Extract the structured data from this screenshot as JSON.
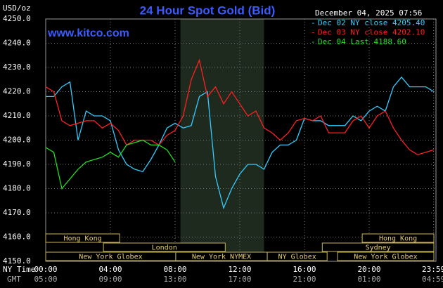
{
  "chart_data": {
    "type": "line",
    "title": "24 Hour Spot Gold (Bid)",
    "y_label": "USD/oz",
    "watermark": "www.kitco.com",
    "timestamp": "December 04, 2025 07:56",
    "x_label": "NY Time",
    "x2_label": "GMT",
    "x": [
      0,
      0.5,
      1,
      1.5,
      2,
      2.5,
      3,
      3.5,
      4,
      4.5,
      5,
      5.5,
      6,
      6.5,
      7,
      7.5,
      8,
      8.5,
      9,
      9.5,
      10,
      10.5,
      11,
      11.5,
      12,
      12.5,
      13,
      13.5,
      14,
      14.5,
      15,
      15.5,
      16,
      16.5,
      17,
      17.5,
      18,
      18.5,
      19,
      19.5,
      20,
      20.5,
      21,
      21.5,
      22,
      22.5,
      23,
      23.5,
      24
    ],
    "series": [
      {
        "name": "Dec 02 NY close 4205.40",
        "color": "#33ccff",
        "values": [
          4218,
          4218,
          4222,
          4224,
          4200,
          4212,
          4210,
          4210,
          4208,
          4196,
          4190,
          4188,
          4187,
          4192,
          4198,
          4205,
          4207,
          4205,
          4206,
          4218,
          4220,
          4185,
          4172,
          4180,
          4186,
          4190,
          4190,
          4188,
          4195,
          4198,
          4198,
          4200,
          4209,
          4208,
          4208,
          4206,
          4206,
          4206,
          4210,
          4208,
          4212,
          4214,
          4212,
          4222,
          4226,
          4222,
          4222,
          4222,
          4220
        ]
      },
      {
        "name": "Dec 03 NY close 4202.10",
        "color": "#ff2020",
        "values": [
          4222,
          4220,
          4208,
          4206,
          4207,
          4208,
          4208,
          4205,
          4207,
          4204,
          4198,
          4200,
          4200,
          4200,
          4198,
          4202,
          4204,
          4210,
          4225,
          4233,
          4218,
          4222,
          4215,
          4220,
          4215,
          4210,
          4212,
          4205,
          4203,
          4200,
          4203,
          4208,
          4209,
          4208,
          4210,
          4203,
          4203,
          4203,
          4208,
          4210,
          4205,
          4210,
          4212,
          4205,
          4200,
          4196,
          4194,
          4195,
          4196
        ]
      },
      {
        "name": "Dec 04 Last 4188.60",
        "color": "#22dd22",
        "values": [
          4197,
          4195,
          4180,
          4184,
          4188,
          4191,
          4192,
          4193,
          4195,
          4193,
          4198,
          4199,
          4200,
          4198,
          4198,
          4196,
          4191,
          null,
          null,
          null,
          null,
          null,
          null,
          null,
          null,
          null,
          null,
          null,
          null,
          null,
          null,
          null,
          null,
          null,
          null,
          null,
          null,
          null,
          null,
          null,
          null,
          null,
          null,
          null,
          null,
          null,
          null,
          null,
          null
        ]
      }
    ],
    "xlim": [
      0,
      24
    ],
    "xticks": [
      {
        "value": 0,
        "label": "00:00"
      },
      {
        "value": 4,
        "label": "04:00"
      },
      {
        "value": 8,
        "label": "08:00"
      },
      {
        "value": 12,
        "label": "12:00"
      },
      {
        "value": 16,
        "label": "16:00"
      },
      {
        "value": 20,
        "label": "20:00"
      },
      {
        "value": 23.98,
        "label": "23:59"
      }
    ],
    "x2ticks": [
      "05:00",
      "09:00",
      "13:00",
      "17:00",
      "21:00",
      "01:00",
      "04:59"
    ],
    "ylim": [
      4150,
      4250
    ],
    "yticks": [
      {
        "value": 4150,
        "label": "4150.0"
      },
      {
        "value": 4160,
        "label": "4160.0"
      },
      {
        "value": 4170,
        "label": "4170.0"
      },
      {
        "value": 4180,
        "label": "4180.0"
      },
      {
        "value": 4190,
        "label": "4190.0"
      },
      {
        "value": 4200,
        "label": "4200.0"
      },
      {
        "value": 4210,
        "label": "4210.0"
      },
      {
        "value": 4220,
        "label": "4220.0"
      },
      {
        "value": 4230,
        "label": "4230.0"
      },
      {
        "value": 4240,
        "label": "4240.0"
      },
      {
        "value": 4250,
        "label": "4250.0"
      }
    ],
    "grid": true,
    "shaded": [
      8.33,
      13.5
    ],
    "sessions": [
      {
        "label": "Hong Kong",
        "start": 0,
        "end": 4.57,
        "row": 0
      },
      {
        "label": "Hong Kong",
        "start": 19.57,
        "end": 24,
        "row": 0
      },
      {
        "label": "London",
        "start": 3.57,
        "end": 11.1,
        "row": 1
      },
      {
        "label": "Sydney",
        "start": 17.1,
        "end": 24,
        "row": 1
      },
      {
        "label": "New York Globex",
        "start": 0,
        "end": 8.04,
        "row": 2
      },
      {
        "label": "New York NYMEX",
        "start": 8.04,
        "end": 13.7,
        "row": 2
      },
      {
        "label": "NY Globex",
        "start": 13.7,
        "end": 17.4,
        "row": 2
      },
      {
        "label": "New York Globex",
        "start": 18.04,
        "end": 24,
        "row": 2
      }
    ]
  }
}
